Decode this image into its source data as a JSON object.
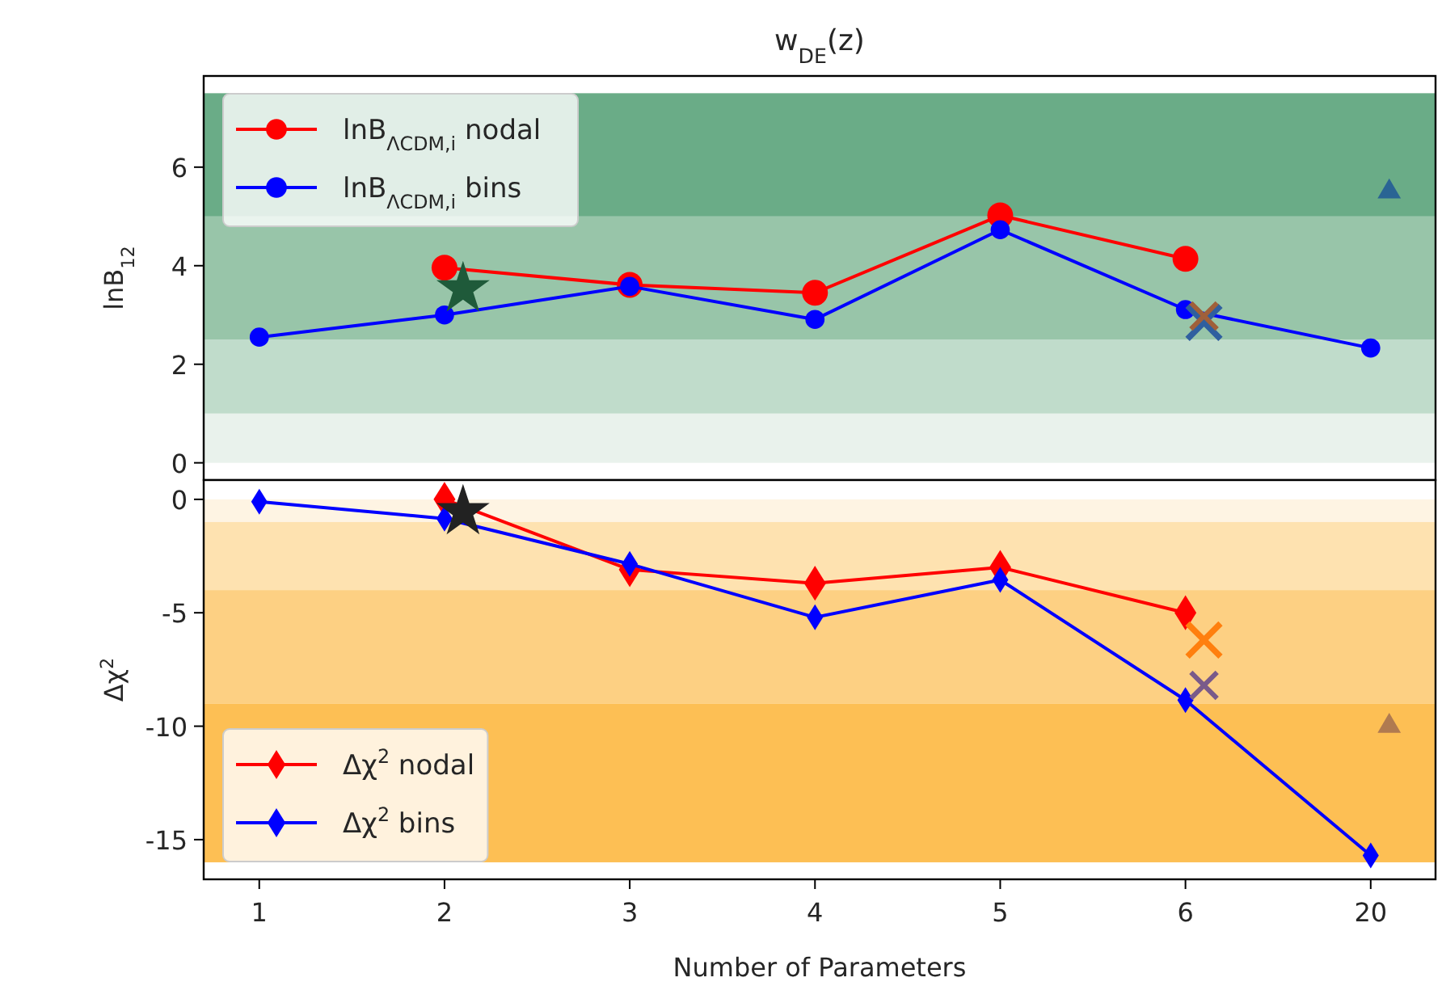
{
  "chart_data": [
    {
      "type": "line",
      "title": "w$_{DE}$(z)",
      "ylabel": "lnB$_{12}$",
      "categories": [
        "1",
        "2",
        "3",
        "4",
        "5",
        "6",
        "20"
      ],
      "ylim": [
        -0.35,
        7.85
      ],
      "yticks": [
        0,
        2,
        4,
        6
      ],
      "tick_labels": "y",
      "legend": "top left",
      "grid": false,
      "bands": [
        {
          "axis": "y",
          "from": 0,
          "to": 1,
          "color": "#e9f2ec"
        },
        {
          "axis": "y",
          "from": 1,
          "to": 2.5,
          "color": "#c0dccb"
        },
        {
          "axis": "y",
          "from": 2.5,
          "to": 5,
          "color": "#98c5a9"
        },
        {
          "axis": "y",
          "from": 5,
          "to": 7.5,
          "color": "#6aac87"
        }
      ],
      "series": [
        {
          "name": "lnB$_{ΛCDM,i}$ nodal",
          "color": "#ff0000",
          "marker": "circle",
          "values": [
            null,
            3.96,
            3.61,
            3.45,
            5.02,
            4.14,
            null
          ]
        },
        {
          "name": "lnB$_{ΛCDM,i}$ bins",
          "color": "#0000ff",
          "marker": "circle",
          "values": [
            2.55,
            3.0,
            3.58,
            2.91,
            4.73,
            3.11,
            2.33
          ]
        },
        {
          "type": "scatter",
          "color": "#1f5a3a",
          "marker": "star",
          "x": [
            "2"
          ],
          "values": [
            3.53
          ]
        },
        {
          "type": "scatter",
          "color": "#2f5f9f",
          "marker": "cross",
          "x": [
            "6"
          ],
          "values": [
            2.85
          ]
        },
        {
          "type": "scatter",
          "color": "#a0603a",
          "marker": "cross",
          "x": [
            "6"
          ],
          "values": [
            2.98
          ]
        },
        {
          "type": "scatter",
          "color": "#2a6494",
          "marker": "triangle",
          "x": [
            "20"
          ],
          "values": [
            5.5
          ]
        }
      ]
    },
    {
      "type": "line",
      "xlabel": "Number of Parameters",
      "ylabel": "Δχ$^{2}$",
      "categories": [
        "1",
        "2",
        "3",
        "4",
        "5",
        "6",
        "20"
      ],
      "ylim": [
        -16.75,
        0.85
      ],
      "yticks": [
        -15,
        -10,
        -5,
        0
      ],
      "legend": "bottom left",
      "grid": false,
      "bands": [
        {
          "axis": "y",
          "from": -1,
          "to": 0,
          "color": "#fef4e3"
        },
        {
          "axis": "y",
          "from": -4,
          "to": -1,
          "color": "#fee2b0"
        },
        {
          "axis": "y",
          "from": -9,
          "to": -4,
          "color": "#fdd083"
        },
        {
          "axis": "y",
          "from": -16,
          "to": -9,
          "color": "#fdbf54"
        }
      ],
      "series": [
        {
          "name": "Δχ$^{2}$ nodal",
          "color": "#ff0000",
          "marker": "diamond",
          "values": [
            null,
            0.0,
            -3.1,
            -3.7,
            -3.0,
            -5.0,
            null
          ]
        },
        {
          "name": "Δχ$^{2}$ bins",
          "color": "#0000ff",
          "marker": "diamond",
          "values": [
            -0.1,
            -0.85,
            -2.85,
            -5.2,
            -3.55,
            -8.85,
            -15.7
          ]
        },
        {
          "type": "scatter",
          "color": "#222222",
          "marker": "star",
          "x": [
            "2"
          ],
          "values": [
            -0.55
          ]
        },
        {
          "type": "scatter",
          "color": "#ff7f0e",
          "marker": "cross",
          "x": [
            "6"
          ],
          "values": [
            -6.2
          ]
        },
        {
          "type": "scatter",
          "color": "#7a5a8a",
          "marker": "cross",
          "x": [
            "6"
          ],
          "values": [
            -8.2
          ]
        },
        {
          "type": "scatter",
          "color": "#b07a50",
          "marker": "triangle",
          "x": [
            "20"
          ],
          "values": [
            -10.0
          ]
        }
      ]
    }
  ]
}
